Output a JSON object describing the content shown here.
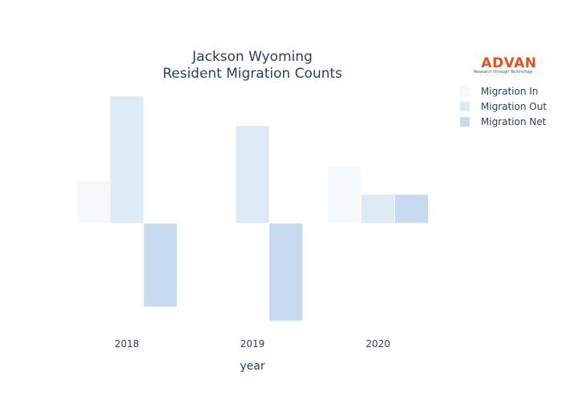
{
  "logo": {
    "name": "ADVAN",
    "tagline": "Research through Technology",
    "color": "#e0521f"
  },
  "chart_data": {
    "type": "bar",
    "title_lines": [
      "Jackson Wyoming",
      "Resident Migration Counts"
    ],
    "xlabel": "year",
    "ylabel": "",
    "categories": [
      "2018",
      "2019",
      "2020"
    ],
    "series": [
      {
        "name": "Migration In",
        "color": "#f5f9fe",
        "values": [
          55,
          0,
          74
        ]
      },
      {
        "name": "Migration Out",
        "color": "#deebf7",
        "values": [
          164,
          126,
          37
        ]
      },
      {
        "name": "Migration Net",
        "color": "#c6dbef",
        "values": [
          -108,
          -126,
          37
        ]
      }
    ],
    "ylim": [
      -130,
      168
    ],
    "grid": false,
    "y_axis_visible": false,
    "legend": "top-right"
  }
}
